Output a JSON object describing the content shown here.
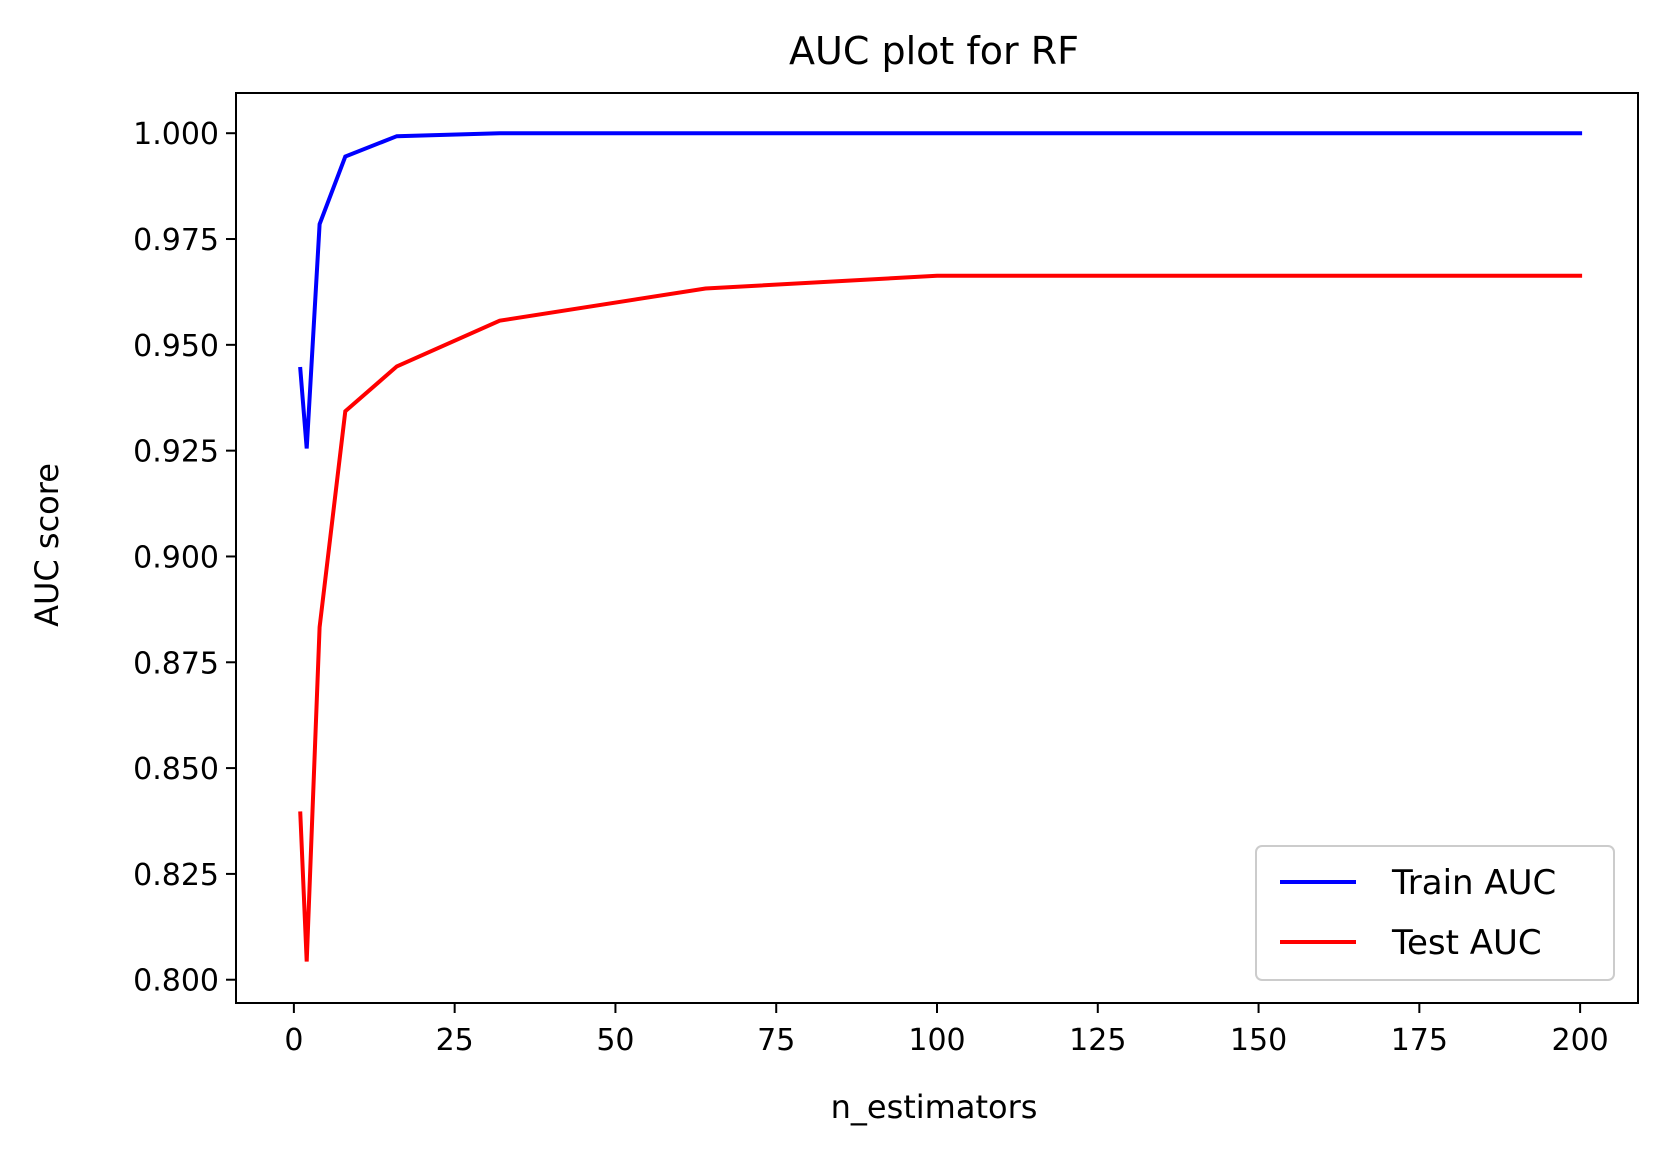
{
  "chart_data": {
    "type": "line",
    "title": "AUC plot for RF",
    "xlabel": "n_estimators",
    "ylabel": "AUC score",
    "xlim": [
      -9,
      209
    ],
    "ylim": [
      0.7945,
      1.0095
    ],
    "xticks": [
      0,
      25,
      50,
      75,
      100,
      125,
      150,
      175,
      200
    ],
    "xtick_labels": [
      "0",
      "25",
      "50",
      "75",
      "100",
      "125",
      "150",
      "175",
      "200"
    ],
    "yticks": [
      0.8,
      0.825,
      0.85,
      0.875,
      0.9,
      0.925,
      0.95,
      0.975,
      1.0
    ],
    "ytick_labels": [
      "0.800",
      "0.825",
      "0.850",
      "0.875",
      "0.900",
      "0.925",
      "0.950",
      "0.975",
      "1.000"
    ],
    "grid": false,
    "legend_position": "lower-right",
    "x": [
      1,
      2,
      4,
      8,
      16,
      32,
      64,
      100,
      200
    ],
    "series": [
      {
        "name": "Train AUC",
        "color": "#0000ff",
        "values": [
          0.9443,
          0.9255,
          0.9785,
          0.9945,
          0.9993,
          1.0,
          1.0,
          1.0,
          1.0
        ]
      },
      {
        "name": "Test AUC",
        "color": "#ff0000",
        "values": [
          0.8393,
          0.8043,
          0.8833,
          0.9343,
          0.9449,
          0.9557,
          0.9633,
          0.9663,
          0.9663
        ]
      }
    ]
  }
}
